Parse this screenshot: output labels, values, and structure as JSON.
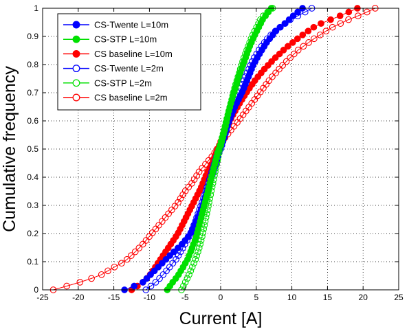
{
  "chart_data": {
    "type": "line",
    "title": "",
    "xlabel": "Current [A]",
    "ylabel": "Cumulative frequency",
    "xlim": [
      -25,
      25
    ],
    "ylim": [
      0,
      1
    ],
    "xticks": [
      "-25",
      "-20",
      "-15",
      "-10",
      "-5",
      "0",
      "5",
      "10",
      "15",
      "20",
      "25"
    ],
    "yticks": [
      "0",
      "0.1",
      "0.2",
      "0.3",
      "0.4",
      "0.5",
      "0.6",
      "0.7",
      "0.8",
      "0.9",
      "1"
    ],
    "grid": true,
    "legend_position": "top-left",
    "series": [
      {
        "name": "CS-Twente L=10m",
        "color": "#0000ff",
        "marker": "filled-circle",
        "n": 75,
        "x": [
          -13.5,
          -11.0,
          -10.0,
          -9.0,
          -8.0,
          -6.8,
          -5.5,
          -4.2,
          -3.3,
          -2.5,
          -1.8,
          -1.0,
          -0.3,
          0.0,
          0.5,
          1.2,
          2.0,
          3.0,
          3.8,
          4.6,
          5.5,
          6.5,
          7.8,
          9.2,
          10.5,
          11.5
        ],
        "y": [
          0.0,
          0.025,
          0.05,
          0.075,
          0.1,
          0.13,
          0.16,
          0.2,
          0.25,
          0.3,
          0.36,
          0.42,
          0.48,
          0.5,
          0.54,
          0.6,
          0.65,
          0.7,
          0.75,
          0.8,
          0.84,
          0.88,
          0.92,
          0.95,
          0.98,
          1.0
        ]
      },
      {
        "name": "CS-STP L=10m",
        "color": "#00e000",
        "marker": "filled-circle",
        "n": 75,
        "x": [
          -7.5,
          -6.8,
          -6.0,
          -5.3,
          -4.6,
          -4.0,
          -3.4,
          -2.9,
          -2.4,
          -1.9,
          -1.4,
          -0.9,
          -0.4,
          0.0,
          0.4,
          0.9,
          1.4,
          2.0,
          2.6,
          3.3,
          4.0,
          4.7,
          5.3,
          5.9,
          6.5,
          7.1
        ],
        "y": [
          0.0,
          0.025,
          0.05,
          0.08,
          0.11,
          0.15,
          0.19,
          0.24,
          0.29,
          0.34,
          0.39,
          0.44,
          0.49,
          0.52,
          0.56,
          0.61,
          0.66,
          0.71,
          0.76,
          0.81,
          0.86,
          0.9,
          0.93,
          0.96,
          0.98,
          1.0
        ]
      },
      {
        "name": "CS baseline L=10m",
        "color": "#ff0000",
        "marker": "filled-circle",
        "n": 75,
        "x": [
          -12.5,
          -11.0,
          -10.0,
          -9.2,
          -8.4,
          -7.6,
          -6.8,
          -6.0,
          -5.2,
          -4.4,
          -3.6,
          -2.8,
          -2.0,
          -1.2,
          -0.4,
          0.2,
          0.9,
          1.7,
          2.6,
          3.6,
          4.7,
          6.0,
          7.5,
          9.2,
          11.2,
          13.5,
          16.5,
          19.2
        ],
        "y": [
          0.0,
          0.025,
          0.05,
          0.08,
          0.11,
          0.14,
          0.17,
          0.2,
          0.24,
          0.28,
          0.32,
          0.36,
          0.41,
          0.45,
          0.5,
          0.54,
          0.58,
          0.62,
          0.66,
          0.7,
          0.74,
          0.78,
          0.82,
          0.86,
          0.9,
          0.94,
          0.97,
          1.0
        ]
      },
      {
        "name": "CS-Twente L=2m",
        "color": "#0000ff",
        "marker": "open-circle",
        "n": 75,
        "x": [
          -10.5,
          -9.2,
          -8.2,
          -7.2,
          -6.2,
          -5.3,
          -4.4,
          -3.6,
          -2.9,
          -2.2,
          -1.6,
          -1.0,
          -0.4,
          0.2,
          0.8,
          1.4,
          2.1,
          2.9,
          3.7,
          4.6,
          5.6,
          6.8,
          8.2,
          9.8,
          11.4,
          12.8
        ],
        "y": [
          0.0,
          0.025,
          0.05,
          0.08,
          0.11,
          0.15,
          0.19,
          0.24,
          0.29,
          0.34,
          0.39,
          0.44,
          0.49,
          0.53,
          0.57,
          0.62,
          0.67,
          0.72,
          0.77,
          0.82,
          0.86,
          0.9,
          0.93,
          0.96,
          0.98,
          1.0
        ]
      },
      {
        "name": "CS-STP L=2m",
        "color": "#00e000",
        "marker": "open-circle",
        "n": 75,
        "x": [
          -5.5,
          -5.0,
          -4.5,
          -4.0,
          -3.5,
          -3.0,
          -2.6,
          -2.2,
          -1.8,
          -1.4,
          -1.0,
          -0.6,
          -0.2,
          0.2,
          0.6,
          1.0,
          1.5,
          2.0,
          2.6,
          3.2,
          3.8,
          4.4,
          5.0,
          5.6,
          6.2,
          6.8,
          7.3
        ],
        "y": [
          0.0,
          0.025,
          0.05,
          0.08,
          0.11,
          0.15,
          0.19,
          0.24,
          0.29,
          0.34,
          0.39,
          0.44,
          0.49,
          0.53,
          0.57,
          0.62,
          0.67,
          0.72,
          0.77,
          0.82,
          0.86,
          0.9,
          0.93,
          0.96,
          0.98,
          0.99,
          1.0
        ]
      },
      {
        "name": "CS baseline L=2m",
        "color": "#ff0000",
        "marker": "open-circle",
        "n": 75,
        "x": [
          -23.5,
          -20.0,
          -17.0,
          -15.0,
          -13.5,
          -12.2,
          -11.0,
          -10.0,
          -9.0,
          -8.0,
          -7.0,
          -6.0,
          -5.0,
          -4.0,
          -3.0,
          -2.0,
          -1.0,
          0.0,
          1.2,
          2.5,
          4.0,
          5.5,
          7.0,
          8.8,
          10.8,
          13.0,
          15.5,
          18.0,
          20.0,
          21.7
        ],
        "y": [
          0.0,
          0.025,
          0.05,
          0.08,
          0.1,
          0.13,
          0.16,
          0.19,
          0.22,
          0.25,
          0.28,
          0.31,
          0.35,
          0.38,
          0.42,
          0.45,
          0.48,
          0.52,
          0.56,
          0.6,
          0.65,
          0.7,
          0.75,
          0.8,
          0.85,
          0.89,
          0.93,
          0.96,
          0.98,
          1.0
        ]
      }
    ]
  }
}
